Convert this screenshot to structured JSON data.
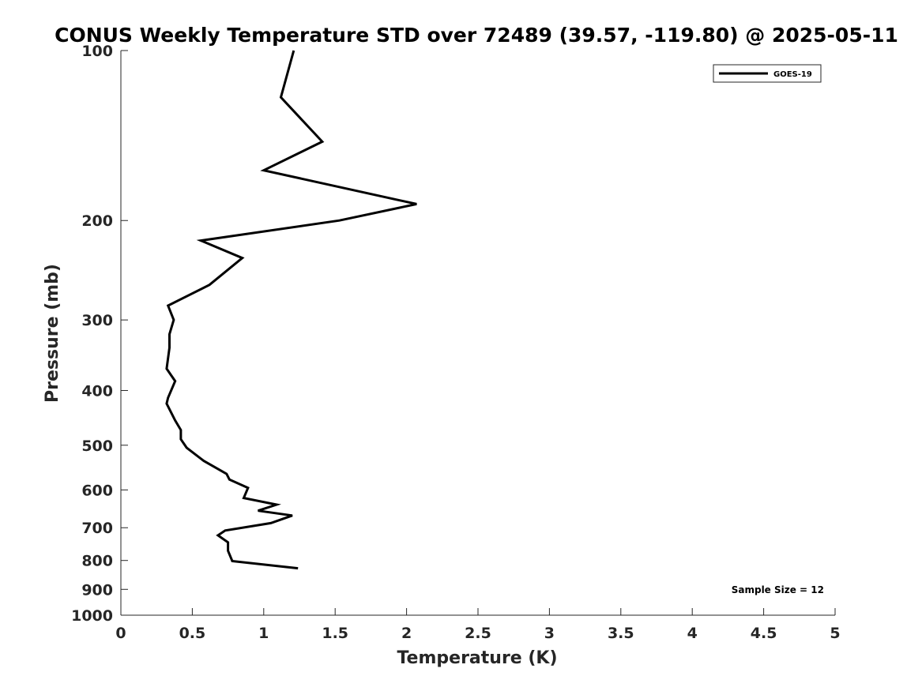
{
  "chart_data": {
    "type": "line",
    "title": "CONUS Weekly Temperature STD over 72489 (39.57, -119.80) @ 2025-05-11",
    "xlabel": "Temperature (K)",
    "ylabel": "Pressure (mb)",
    "xlim": [
      0,
      5
    ],
    "ylim": [
      100,
      1000
    ],
    "y_scale": "log",
    "y_reversed": true,
    "grid": false,
    "legend_position": "top-right",
    "xticks": [
      "0",
      "0.5",
      "1",
      "1.5",
      "2",
      "2.5",
      "3",
      "3.5",
      "4",
      "4.5",
      "5"
    ],
    "yticks": [
      "100",
      "200",
      "300",
      "400",
      "500",
      "600",
      "700",
      "800",
      "900",
      "1000"
    ],
    "series": [
      {
        "name": "GOES-19",
        "color": "#000000",
        "x": [
          1.21,
          1.12,
          1.41,
          1.0,
          2.07,
          1.53,
          0.56,
          0.85,
          0.62,
          0.33,
          0.37,
          0.34,
          0.34,
          0.32,
          0.38,
          0.33,
          0.32,
          0.38,
          0.42,
          0.42,
          0.46,
          0.58,
          0.74,
          0.76,
          0.89,
          0.86,
          1.09,
          0.96,
          1.2,
          1.05,
          0.73,
          0.68,
          0.75,
          0.75,
          0.78,
          1.24
        ],
        "y": [
          100,
          121,
          145,
          163,
          187,
          200,
          217,
          233,
          260,
          283,
          300,
          318,
          336,
          366,
          385,
          412,
          422,
          452,
          470,
          488,
          505,
          533,
          562,
          575,
          595,
          620,
          637,
          653,
          666,
          687,
          708,
          722,
          743,
          769,
          802,
          826
        ]
      }
    ],
    "annotations": [
      "Sample Size = 12"
    ]
  }
}
